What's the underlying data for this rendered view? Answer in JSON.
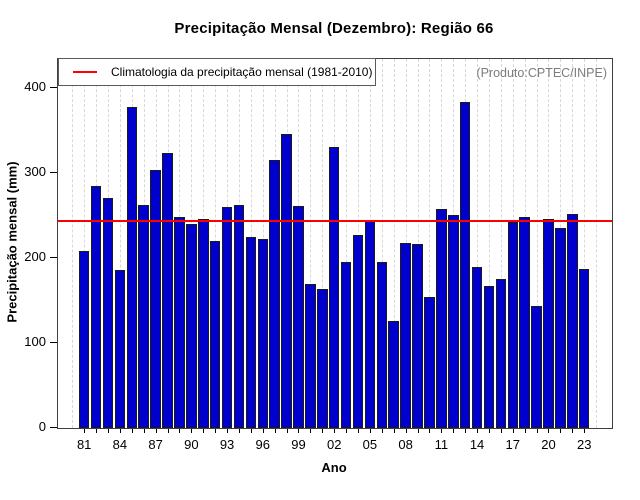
{
  "chart_data": {
    "type": "bar",
    "title": "Precipitação Mensal (Dezembro): Região 66",
    "xlabel": "Ano",
    "ylabel": "Precipitação mensal (mm)",
    "annotation": "(Produto:CPTEC/INPE)",
    "ylim": [
      0,
      434
    ],
    "yticks": [
      0,
      100,
      200,
      300,
      400
    ],
    "ytick_labels": [
      "0",
      "100",
      "200",
      "300",
      "400"
    ],
    "x_tick_labels": [
      "81",
      "84",
      "87",
      "90",
      "93",
      "96",
      "99",
      "02",
      "05",
      "08",
      "11",
      "14",
      "17",
      "20",
      "23"
    ],
    "x_label_every": 3,
    "grid": "vertical-dashed",
    "legend_position": "top-left",
    "years": [
      1981,
      1982,
      1983,
      1984,
      1985,
      1986,
      1987,
      1988,
      1989,
      1990,
      1991,
      1992,
      1993,
      1994,
      1995,
      1996,
      1997,
      1998,
      1999,
      2000,
      2001,
      2002,
      2003,
      2004,
      2005,
      2006,
      2007,
      2008,
      2009,
      2010,
      2011,
      2012,
      2013,
      2014,
      2015,
      2016,
      2017,
      2018,
      2019,
      2020,
      2021,
      2022,
      2023
    ],
    "values": [
      208,
      285,
      271,
      186,
      377,
      262,
      303,
      324,
      248,
      240,
      246,
      220,
      260,
      262,
      225,
      222,
      315,
      346,
      261,
      169,
      163,
      331,
      195,
      227,
      244,
      195,
      126,
      218,
      216,
      154,
      258,
      250,
      383,
      189,
      167,
      175,
      242,
      248,
      143,
      246,
      235,
      252,
      187
    ],
    "climatology": {
      "label": "Climatologia da precipitação mensal (1981-2010)",
      "value": 243,
      "color": "#FF0000"
    },
    "colors": {
      "bar_fill": "#0000CC",
      "bar_border": "#1b1b1b",
      "grid": "#d8d8d8",
      "annotation_text": "#7d7d7d",
      "box": "#3f3f3f"
    }
  }
}
